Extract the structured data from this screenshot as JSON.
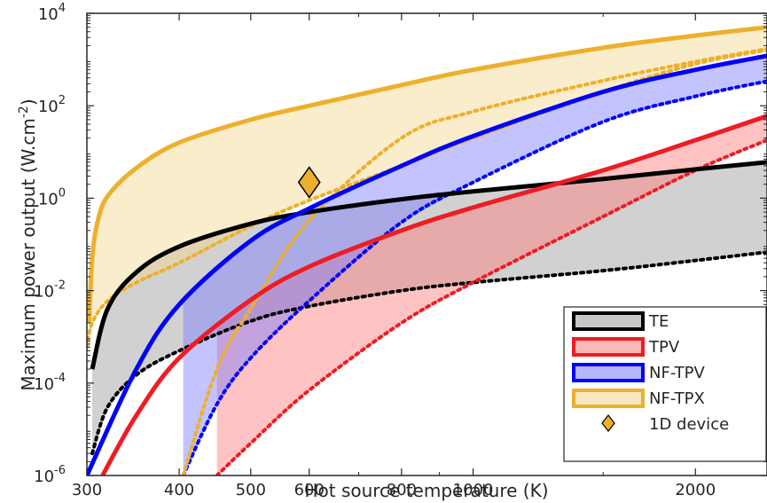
{
  "chart_data": {
    "type": "line",
    "x_scale": "log",
    "y_scale": "log",
    "xlabel": "Hot source temperature (K)",
    "ylabel_main": "Maximum power output (W.cm",
    "ylabel_sup": "-2",
    "ylabel_close": ")",
    "xlim": [
      300,
      2500
    ],
    "ylim": [
      1e-06,
      10000.0
    ],
    "x_ticks": [
      {
        "value": 300,
        "label": "300"
      },
      {
        "value": 400,
        "label": "400"
      },
      {
        "value": 500,
        "label": "500"
      },
      {
        "value": 600,
        "label": "600"
      },
      {
        "value": 800,
        "label": "800"
      },
      {
        "value": 1000,
        "label": "1000"
      },
      {
        "value": 2000,
        "label": "2000"
      }
    ],
    "y_ticks": [
      {
        "value": 1e-06,
        "base": "10",
        "exp": "-6"
      },
      {
        "value": 0.0001,
        "base": "10",
        "exp": "-4"
      },
      {
        "value": 0.01,
        "base": "10",
        "exp": "-2"
      },
      {
        "value": 1,
        "base": "10",
        "exp": "0"
      },
      {
        "value": 100,
        "base": "10",
        "exp": "2"
      },
      {
        "value": 10000,
        "base": "10",
        "exp": "4"
      }
    ],
    "grid": false,
    "legend_position": "bottom-right",
    "series": [
      {
        "name": "TE",
        "color": "#000000",
        "fill": "#999999",
        "upper": {
          "x": [
            305,
            320,
            350,
            400,
            500,
            600,
            800,
            1000,
            1500,
            2000,
            2500
          ],
          "y": [
            0.0002,
            0.004,
            0.025,
            0.09,
            0.28,
            0.5,
            0.95,
            1.4,
            2.6,
            4.2,
            6.0
          ]
        },
        "lower": {
          "x": [
            305,
            320,
            350,
            400,
            500,
            600,
            800,
            1000,
            1500,
            2000,
            2500
          ],
          "y": [
            3e-06,
            3e-05,
            0.00015,
            0.0005,
            0.0022,
            0.0046,
            0.01,
            0.015,
            0.027,
            0.045,
            0.068
          ]
        }
      },
      {
        "name": "TPV",
        "color": "#ee1c23",
        "fill": "#ff7a7a",
        "upper": {
          "x": [
            315,
            350,
            400,
            500,
            600,
            800,
            1000,
            1500,
            2000,
            2500
          ],
          "y": [
            1e-06,
            2e-05,
            0.00035,
            0.0063,
            0.033,
            0.2,
            0.63,
            4.0,
            18,
            60
          ]
        },
        "lower": {
          "x": [
            450,
            500,
            600,
            800,
            1000,
            1500,
            2000,
            2500
          ],
          "y": [
            1e-06,
            5e-06,
            7e-05,
            0.002,
            0.015,
            0.4,
            4.0,
            18
          ]
        }
      },
      {
        "name": "NF-TPV",
        "color": "#0000ff",
        "fill": "#7a7aff",
        "upper": {
          "x": [
            300,
            350,
            400,
            500,
            600,
            800,
            1000,
            1500,
            2000,
            2500
          ],
          "y": [
            1e-06,
            0.0002,
            0.005,
            0.12,
            0.6,
            5,
            22,
            200,
            600,
            1200
          ]
        },
        "lower": {
          "x": [
            405,
            450,
            500,
            600,
            800,
            1000,
            1500,
            2000,
            2500
          ],
          "y": [
            1e-06,
            3.5e-05,
            0.00035,
            0.006,
            0.3,
            2.2,
            45,
            160,
            340
          ]
        }
      },
      {
        "name": "NF-TPX",
        "color": "#edb02c",
        "fill": "#f5d68c",
        "upper": {
          "x": [
            302,
            305,
            310,
            320,
            350,
            400,
            500,
            600,
            800,
            1000,
            1500,
            2000,
            2500
          ],
          "y": [
            0.002,
            0.05,
            0.3,
            1.1,
            4.5,
            16,
            50,
            100,
            280,
            600,
            1800,
            3300,
            5000
          ]
        },
        "lower": {
          "x": [
            300,
            305,
            320,
            350,
            400,
            500,
            600,
            800,
            1000,
            1500,
            2000,
            2500
          ],
          "y": [
            0.0006,
            0.002,
            0.006,
            0.015,
            0.04,
            0.25,
            0.9,
            5,
            20,
            200,
            800,
            1600
          ]
        },
        "dotted_lower": {
          "x": [
            405,
            450,
            500,
            600,
            800,
            1000,
            1500,
            2000,
            2500
          ],
          "y": [
            1e-06,
            0.0002,
            0.0041,
            0.33,
            20,
            75,
            350,
            900,
            1700
          ]
        }
      }
    ],
    "points": [
      {
        "name": "1D device",
        "x": 600,
        "y": 2.2,
        "marker": "diamond",
        "color": "#edb02c"
      }
    ],
    "legend_entries": [
      "TE",
      "TPV",
      "NF-TPV",
      "NF-TPX",
      "1D device"
    ]
  }
}
